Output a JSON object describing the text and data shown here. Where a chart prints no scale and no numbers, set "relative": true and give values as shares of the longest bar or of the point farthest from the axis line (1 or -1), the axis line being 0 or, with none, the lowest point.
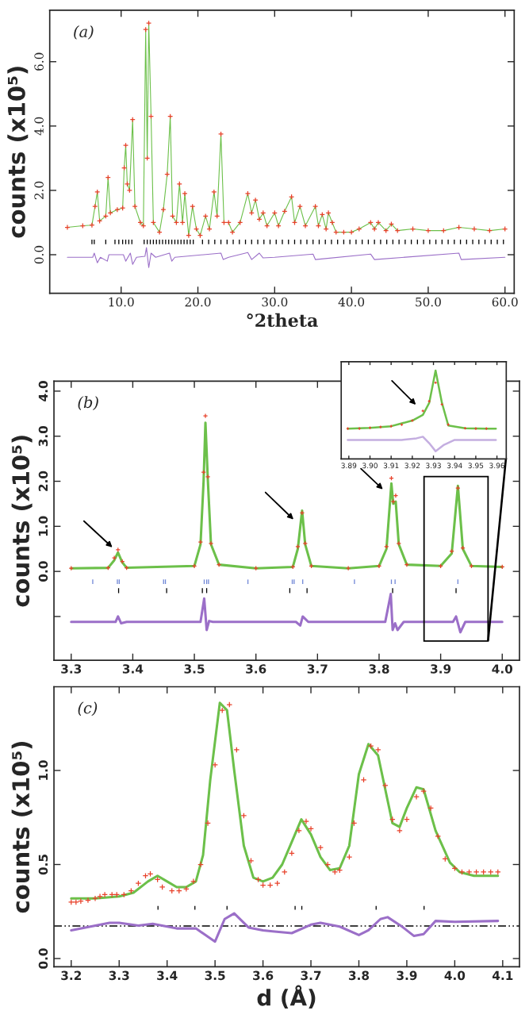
{
  "chart_data": [
    {
      "type": "line",
      "annotations": [
        "(a)"
      ],
      "xlabel": "°2theta",
      "ylabel": "counts (x10⁵)",
      "xlim": [
        0.7,
        61.2
      ],
      "ylim": [
        -1.2,
        7.6
      ],
      "xticks": [
        {
          "value": 10,
          "label": "10.0"
        },
        {
          "value": 20,
          "label": "20.0"
        },
        {
          "value": 30,
          "label": "30.0"
        },
        {
          "value": 40,
          "label": "40.0"
        },
        {
          "value": 50,
          "label": "50.0"
        },
        {
          "value": 60,
          "label": "60.0"
        }
      ],
      "yticks": [
        {
          "value": 0,
          "label": "0.0"
        },
        {
          "value": 2,
          "label": "2.0"
        },
        {
          "value": 4,
          "label": "4.0"
        },
        {
          "value": 6,
          "label": "6.0"
        }
      ],
      "series": [
        {
          "color": "#6cc04a",
          "x": [
            3.0,
            5.0,
            6.2,
            6.6,
            6.9,
            7.2,
            8.0,
            8.3,
            8.6,
            9.5,
            10.2,
            10.4,
            10.6,
            10.8,
            11.1,
            11.5,
            11.8,
            12.5,
            12.9,
            13.2,
            13.4,
            13.6,
            13.9,
            14.2,
            15.0,
            15.5,
            16.0,
            16.4,
            16.7,
            17.2,
            17.6,
            18.0,
            18.3,
            18.8,
            19.3,
            19.8,
            20.3,
            21.0,
            21.5,
            22.1,
            22.5,
            23.0,
            23.4,
            24.0,
            24.5,
            25.5,
            26.5,
            27.0,
            27.5,
            28.0,
            28.5,
            29.0,
            30.0,
            30.5,
            31.3,
            32.2,
            32.6,
            33.3,
            34.0,
            35.3,
            35.7,
            36.2,
            36.7,
            37.0,
            37.5,
            38.0,
            39.0,
            40.0,
            41.0,
            42.5,
            43.0,
            43.5,
            44.5,
            45.2,
            46.0,
            48.0,
            50.0,
            52.0,
            54.0,
            56.0,
            58.0,
            60.0
          ],
          "values": [
            0.85,
            0.9,
            0.92,
            1.5,
            1.95,
            1.05,
            1.2,
            2.4,
            1.3,
            1.4,
            1.45,
            2.7,
            3.4,
            2.2,
            2.0,
            4.2,
            1.5,
            1.0,
            0.9,
            7.0,
            3.0,
            7.2,
            4.3,
            1.0,
            0.7,
            1.4,
            2.5,
            4.3,
            1.2,
            1.0,
            2.2,
            1.0,
            1.9,
            0.6,
            1.5,
            0.8,
            0.6,
            1.2,
            0.8,
            1.95,
            1.2,
            3.75,
            1.0,
            1.0,
            0.7,
            1.0,
            1.9,
            1.3,
            1.7,
            1.1,
            1.3,
            0.9,
            1.3,
            0.9,
            1.35,
            1.8,
            1.0,
            1.5,
            0.9,
            1.5,
            0.9,
            1.25,
            0.8,
            1.3,
            1.0,
            0.7,
            0.7,
            0.7,
            0.8,
            1.0,
            0.8,
            1.0,
            0.75,
            0.95,
            0.75,
            0.8,
            0.75,
            0.75,
            0.85,
            0.8,
            0.75,
            0.8
          ]
        },
        {
          "type": "scatter",
          "marker": "cross",
          "color": "#e8412a",
          "x": [
            3.0,
            5.0,
            6.2,
            6.6,
            6.9,
            7.2,
            8.0,
            8.3,
            8.6,
            9.5,
            10.2,
            10.4,
            10.6,
            10.8,
            11.1,
            11.5,
            11.8,
            12.5,
            12.9,
            13.2,
            13.4,
            13.6,
            13.9,
            14.2,
            15.0,
            15.5,
            16.0,
            16.4,
            16.7,
            17.2,
            17.6,
            18.0,
            18.3,
            18.8,
            19.3,
            19.8,
            20.3,
            21.0,
            21.5,
            22.1,
            22.5,
            23.0,
            23.4,
            24.0,
            24.5,
            25.5,
            26.5,
            27.0,
            27.5,
            28.0,
            28.5,
            29.0,
            30.0,
            30.5,
            31.3,
            32.2,
            32.6,
            33.3,
            34.0,
            35.3,
            35.7,
            36.2,
            36.7,
            37.0,
            37.5,
            38.0,
            39.0,
            40.0,
            41.0,
            42.5,
            43.0,
            43.5,
            44.5,
            45.2,
            46.0,
            48.0,
            50.0,
            52.0,
            54.0,
            56.0,
            58.0,
            60.0
          ],
          "values": [
            0.85,
            0.9,
            0.92,
            1.5,
            1.95,
            1.05,
            1.2,
            2.4,
            1.3,
            1.4,
            1.45,
            2.7,
            3.4,
            2.2,
            2.0,
            4.2,
            1.5,
            1.0,
            0.9,
            7.0,
            3.0,
            7.2,
            4.3,
            1.0,
            0.7,
            1.4,
            2.5,
            4.3,
            1.2,
            1.0,
            2.2,
            1.0,
            1.9,
            0.6,
            1.5,
            0.8,
            0.6,
            1.2,
            0.8,
            1.95,
            1.2,
            3.75,
            1.0,
            1.0,
            0.7,
            1.0,
            1.9,
            1.3,
            1.7,
            1.1,
            1.3,
            0.9,
            1.3,
            0.9,
            1.35,
            1.8,
            1.0,
            1.5,
            0.9,
            1.5,
            0.9,
            1.25,
            0.8,
            1.3,
            1.0,
            0.7,
            0.7,
            0.7,
            0.8,
            1.0,
            0.8,
            1.0,
            0.75,
            0.95,
            0.75,
            0.8,
            0.75,
            0.75,
            0.85,
            0.8,
            0.75,
            0.8
          ]
        },
        {
          "color": "#9b6fc8",
          "x": [
            3.0,
            6.3,
            6.5,
            6.9,
            7.3,
            8.2,
            8.4,
            10.3,
            10.6,
            11.2,
            11.5,
            12.0,
            13.1,
            13.3,
            13.6,
            13.9,
            14.5,
            16.3,
            16.6,
            17.0,
            23.0,
            23.3,
            24.0,
            26.5,
            27.0,
            28.0,
            28.5,
            30.0,
            35.0,
            35.3,
            42.5,
            43.0,
            54.0,
            54.3,
            60.0
          ],
          "values": [
            -0.08,
            -0.08,
            0.05,
            -0.25,
            -0.08,
            -0.2,
            0.0,
            0.0,
            -0.2,
            0.05,
            -0.3,
            -0.08,
            -0.05,
            0.22,
            -0.4,
            0.05,
            -0.08,
            0.05,
            -0.2,
            -0.08,
            0.05,
            -0.15,
            -0.08,
            0.07,
            -0.15,
            0.05,
            -0.1,
            -0.08,
            0.02,
            -0.15,
            0.02,
            -0.15,
            0.05,
            -0.15,
            -0.08
          ]
        },
        {
          "type": "bar",
          "color": "#000000",
          "x": [
            6.2,
            6.5,
            8.0,
            9.2,
            9.7,
            10.2,
            10.6,
            11.0,
            11.4,
            13.0,
            13.4,
            13.8,
            14.2,
            14.6,
            15.0,
            15.4,
            15.8,
            16.2,
            16.6,
            17.0,
            17.4,
            17.8,
            18.2,
            18.6,
            19.0,
            19.4,
            20.6,
            21.4,
            22.2,
            23.0,
            23.8,
            24.6,
            25.4,
            26.2,
            27.0,
            27.8,
            28.6,
            29.4,
            30.2,
            31.0,
            31.8,
            32.6,
            33.4,
            34.2,
            35.0,
            35.8,
            36.6,
            37.4,
            38.2,
            39.0,
            39.8,
            40.6,
            41.4,
            42.2,
            43.0,
            43.8,
            44.6,
            45.4,
            46.2,
            47.0,
            47.8,
            48.6,
            49.4,
            50.2,
            51.0,
            51.8,
            52.6,
            53.4,
            54.2,
            55.0,
            55.8,
            56.6,
            57.4,
            58.2,
            59.0,
            59.8
          ],
          "base": [
            0.33,
            0.33,
            0.33,
            0.33,
            0.33,
            0.33,
            0.33,
            0.33,
            0.33,
            0.33,
            0.33,
            0.33,
            0.33,
            0.33,
            0.33,
            0.33,
            0.33,
            0.33,
            0.33,
            0.33,
            0.33,
            0.33,
            0.33,
            0.33,
            0.33,
            0.33,
            0.33,
            0.33,
            0.33,
            0.33,
            0.33,
            0.33,
            0.33,
            0.33,
            0.33,
            0.33,
            0.33,
            0.33,
            0.33,
            0.33,
            0.33,
            0.33,
            0.33,
            0.33,
            0.33,
            0.33,
            0.33,
            0.33,
            0.33,
            0.33,
            0.33,
            0.33,
            0.33,
            0.33,
            0.33,
            0.33,
            0.33,
            0.33,
            0.33,
            0.33,
            0.33,
            0.33,
            0.33,
            0.33,
            0.33,
            0.33,
            0.33,
            0.33,
            0.33,
            0.33,
            0.33,
            0.33,
            0.33,
            0.33,
            0.33,
            0.33
          ],
          "values": [
            0.14,
            0.14,
            0.14,
            0.14,
            0.14,
            0.14,
            0.14,
            0.14,
            0.14,
            0.14,
            0.14,
            0.14,
            0.14,
            0.14,
            0.14,
            0.14,
            0.14,
            0.14,
            0.14,
            0.14,
            0.14,
            0.14,
            0.14,
            0.14,
            0.14,
            0.14,
            0.14,
            0.14,
            0.14,
            0.14,
            0.14,
            0.14,
            0.14,
            0.14,
            0.14,
            0.14,
            0.14,
            0.14,
            0.14,
            0.14,
            0.14,
            0.14,
            0.14,
            0.14,
            0.14,
            0.14,
            0.14,
            0.14,
            0.14,
            0.14,
            0.14,
            0.14,
            0.14,
            0.14,
            0.14,
            0.14,
            0.14,
            0.14,
            0.14,
            0.14,
            0.14,
            0.14,
            0.14,
            0.14,
            0.14,
            0.14,
            0.14,
            0.14,
            0.14,
            0.14,
            0.14,
            0.14,
            0.14,
            0.14,
            0.14,
            0.14
          ]
        }
      ]
    },
    {
      "type": "line",
      "annotations": [
        "(b)"
      ],
      "ylabel": "counts (x10⁵)",
      "xlim": [
        3.272,
        4.028
      ],
      "ylim": [
        -1.97,
        4.22
      ],
      "xticks": [
        3.3,
        3.4,
        3.5,
        3.6,
        3.7,
        3.8,
        3.9,
        {
          "value": 4.0,
          "label": "4.0"
        }
      ],
      "yticks": [
        {
          "value": -1.0,
          "label": null
        },
        {
          "value": 0,
          "label": "0.0"
        },
        {
          "value": 1,
          "label": "1.0"
        },
        {
          "value": 2,
          "label": "2.0"
        },
        {
          "value": 3,
          "label": "3.0"
        },
        {
          "value": 4,
          "label": "4.0"
        }
      ],
      "series": [
        {
          "color": "#6cc04a",
          "x": [
            3.3,
            3.36,
            3.37,
            3.376,
            3.383,
            3.39,
            3.5,
            3.51,
            3.515,
            3.518,
            3.522,
            3.527,
            3.54,
            3.6,
            3.66,
            3.668,
            3.675,
            3.68,
            3.69,
            3.75,
            3.8,
            3.812,
            3.82,
            3.823,
            3.827,
            3.832,
            3.845,
            3.9,
            3.918,
            3.928,
            3.936,
            3.95,
            4.0
          ],
          "values": [
            0.07,
            0.08,
            0.25,
            0.42,
            0.2,
            0.08,
            0.12,
            0.6,
            2.0,
            3.3,
            2.0,
            0.6,
            0.15,
            0.07,
            0.1,
            0.5,
            1.35,
            0.6,
            0.12,
            0.07,
            0.12,
            0.5,
            1.95,
            1.5,
            1.55,
            0.6,
            0.15,
            0.12,
            0.4,
            1.9,
            0.5,
            0.12,
            0.1
          ]
        },
        {
          "type": "scatter",
          "marker": "cross",
          "color": "#e8412a",
          "x": [
            3.3,
            3.36,
            3.37,
            3.376,
            3.383,
            3.39,
            3.5,
            3.51,
            3.515,
            3.518,
            3.522,
            3.527,
            3.54,
            3.6,
            3.66,
            3.668,
            3.675,
            3.68,
            3.69,
            3.75,
            3.8,
            3.812,
            3.82,
            3.823,
            3.827,
            3.832,
            3.845,
            3.9,
            3.918,
            3.928,
            3.936,
            3.95,
            4.0
          ],
          "values": [
            0.07,
            0.08,
            0.3,
            0.48,
            0.22,
            0.08,
            0.12,
            0.65,
            2.2,
            3.45,
            2.1,
            0.62,
            0.15,
            0.07,
            0.1,
            0.55,
            1.3,
            0.62,
            0.12,
            0.07,
            0.12,
            0.55,
            2.07,
            1.55,
            1.68,
            0.62,
            0.15,
            0.12,
            0.45,
            1.85,
            0.52,
            0.12,
            0.1
          ]
        },
        {
          "type": "bar",
          "color": "#6f86d6",
          "x": [
            3.335,
            3.375,
            3.378,
            3.45,
            3.453,
            3.516,
            3.52,
            3.523,
            3.587,
            3.659,
            3.662,
            3.676,
            3.76,
            3.82,
            3.826,
            3.928
          ],
          "base": [
            -0.28,
            -0.28,
            -0.28,
            -0.28,
            -0.28,
            -0.28,
            -0.28,
            -0.28,
            -0.28,
            -0.28,
            -0.28,
            -0.28,
            -0.28,
            -0.28,
            -0.28,
            -0.28
          ],
          "values": [
            0.1,
            0.1,
            0.1,
            0.1,
            0.1,
            0.1,
            0.1,
            0.1,
            0.1,
            0.1,
            0.1,
            0.1,
            0.1,
            0.1,
            0.1,
            0.1
          ]
        },
        {
          "type": "bar",
          "color": "#000000",
          "x": [
            3.377,
            3.455,
            3.513,
            3.52,
            3.655,
            3.683,
            3.822,
            3.925
          ],
          "base": [
            -0.48,
            -0.48,
            -0.48,
            -0.48,
            -0.48,
            -0.48,
            -0.48,
            -0.48
          ],
          "values": [
            0.11,
            0.11,
            0.11,
            0.11,
            0.11,
            0.11,
            0.11,
            0.11
          ]
        },
        {
          "color": "#9b6fc8",
          "x": [
            3.3,
            3.372,
            3.376,
            3.381,
            3.39,
            3.51,
            3.516,
            3.52,
            3.524,
            3.53,
            3.665,
            3.672,
            3.676,
            3.685,
            3.81,
            3.819,
            3.822,
            3.826,
            3.83,
            3.84,
            3.92,
            3.925,
            3.932,
            3.94,
            4.0
          ],
          "values": [
            -1.12,
            -1.12,
            -1.0,
            -1.15,
            -1.12,
            -1.12,
            -0.6,
            -1.3,
            -1.1,
            -1.12,
            -1.12,
            -1.2,
            -1.0,
            -1.12,
            -1.12,
            -0.5,
            -1.3,
            -1.15,
            -1.3,
            -1.12,
            -1.12,
            -1.0,
            -1.35,
            -1.12,
            -1.12
          ]
        }
      ]
    },
    {
      "type": "line",
      "relative": true,
      "tick_labels": "x",
      "xlim": [
        3.8864,
        3.9644
      ],
      "xticks": [
        3.89,
        {
          "value": 3.9,
          "label": "3.90"
        },
        3.91,
        3.92,
        3.93,
        3.94,
        3.95,
        3.96
      ],
      "series": [
        {
          "color": "#6cc04a",
          "x": [
            3.8895,
            3.9,
            3.91,
            3.92,
            3.925,
            3.928,
            3.931,
            3.934,
            3.937,
            3.945,
            3.955,
            3.9595
          ],
          "values": [
            0.343,
            0.352,
            0.37,
            0.434,
            0.498,
            0.635,
            1.0,
            0.635,
            0.379,
            0.347,
            0.343,
            0.343
          ]
        },
        {
          "type": "scatter",
          "marker": "cross",
          "color": "#e8412a",
          "x": [
            3.8895,
            3.895,
            3.9,
            3.905,
            3.91,
            3.915,
            3.92,
            3.925,
            3.928,
            3.931,
            3.934,
            3.937,
            3.945,
            3.95,
            3.955
          ],
          "values": [
            0.343,
            0.343,
            0.352,
            0.361,
            0.37,
            0.388,
            0.434,
            0.544,
            0.653,
            0.863,
            0.617,
            0.388,
            0.347,
            0.343,
            0.343
          ]
        },
        {
          "color": "#c4aee0",
          "x": [
            3.8895,
            3.915,
            3.922,
            3.925,
            3.928,
            3.931,
            3.935,
            3.94,
            3.9595
          ],
          "values": [
            0.215,
            0.215,
            0.233,
            0.251,
            0.178,
            0.087,
            0.16,
            0.215,
            0.215
          ]
        }
      ]
    },
    {
      "type": "line",
      "annotations": [
        "(c)"
      ],
      "xlabel": "d (Å)",
      "ylabel": "counts (x10⁵)",
      "xlim": [
        3.164,
        4.135
      ],
      "ylim": [
        -0.044,
        1.445
      ],
      "xticks": [
        3.2,
        3.3,
        3.4,
        3.5,
        3.6,
        3.7,
        3.8,
        3.9,
        {
          "value": 4.0,
          "label": "4.0"
        },
        4.1
      ],
      "yticks": [
        {
          "value": 0,
          "label": "0.0"
        },
        0.5,
        {
          "value": 1,
          "label": "1.0"
        }
      ],
      "ref_lines": [
        {
          "axis": "y",
          "value": 0.173,
          "color": "#000000",
          "line_style": "dashdot"
        }
      ],
      "series": [
        {
          "color": "#6cc04a",
          "x": [
            3.2,
            3.25,
            3.3,
            3.33,
            3.36,
            3.38,
            3.4,
            3.42,
            3.44,
            3.46,
            3.475,
            3.49,
            3.51,
            3.525,
            3.54,
            3.56,
            3.58,
            3.6,
            3.62,
            3.64,
            3.66,
            3.68,
            3.7,
            3.72,
            3.74,
            3.76,
            3.78,
            3.8,
            3.82,
            3.84,
            3.87,
            3.885,
            3.9,
            3.92,
            3.935,
            3.96,
            3.99,
            4.01,
            4.04,
            4.09
          ],
          "values": [
            0.32,
            0.32,
            0.33,
            0.35,
            0.41,
            0.44,
            0.41,
            0.38,
            0.38,
            0.41,
            0.55,
            0.95,
            1.36,
            1.32,
            1.0,
            0.6,
            0.43,
            0.41,
            0.43,
            0.5,
            0.62,
            0.74,
            0.66,
            0.54,
            0.47,
            0.48,
            0.6,
            0.98,
            1.14,
            1.08,
            0.72,
            0.7,
            0.8,
            0.91,
            0.9,
            0.68,
            0.51,
            0.46,
            0.44,
            0.44
          ]
        },
        {
          "type": "scatter",
          "marker": "cross",
          "color": "#e8412a",
          "x": [
            3.2,
            3.21,
            3.22,
            3.235,
            3.25,
            3.26,
            3.27,
            3.285,
            3.295,
            3.31,
            3.325,
            3.34,
            3.355,
            3.365,
            3.38,
            3.39,
            3.41,
            3.425,
            3.44,
            3.455,
            3.47,
            3.485,
            3.5,
            3.515,
            3.53,
            3.545,
            3.56,
            3.575,
            3.59,
            3.6,
            3.615,
            3.63,
            3.645,
            3.66,
            3.675,
            3.69,
            3.7,
            3.72,
            3.735,
            3.75,
            3.76,
            3.78,
            3.79,
            3.81,
            3.825,
            3.84,
            3.855,
            3.87,
            3.885,
            3.9,
            3.92,
            3.935,
            3.95,
            3.965,
            3.98,
            4.0,
            4.015,
            4.03,
            4.045,
            4.06,
            4.075,
            4.09
          ],
          "values": [
            0.3,
            0.3,
            0.305,
            0.31,
            0.32,
            0.33,
            0.34,
            0.34,
            0.34,
            0.34,
            0.36,
            0.4,
            0.44,
            0.45,
            0.42,
            0.38,
            0.36,
            0.36,
            0.37,
            0.41,
            0.5,
            0.72,
            1.03,
            1.32,
            1.35,
            1.11,
            0.76,
            0.52,
            0.42,
            0.39,
            0.39,
            0.4,
            0.46,
            0.56,
            0.68,
            0.73,
            0.69,
            0.59,
            0.5,
            0.46,
            0.47,
            0.54,
            0.72,
            0.95,
            1.13,
            1.11,
            0.92,
            0.74,
            0.68,
            0.74,
            0.86,
            0.89,
            0.8,
            0.65,
            0.53,
            0.48,
            0.46,
            0.46,
            0.46,
            0.46,
            0.46,
            0.46
          ]
        },
        {
          "type": "bar",
          "color": "#000000",
          "x": [
            3.381,
            3.458,
            3.525,
            3.667,
            3.681,
            3.836,
            3.936
          ],
          "base": [
            0.26,
            0.26,
            0.26,
            0.26,
            0.26,
            0.26,
            0.26
          ],
          "values": [
            0.02,
            0.02,
            0.02,
            0.02,
            0.02,
            0.02,
            0.02
          ]
        },
        {
          "color": "#9b6fc8",
          "x": [
            3.2,
            3.28,
            3.3,
            3.34,
            3.37,
            3.42,
            3.46,
            3.5,
            3.52,
            3.54,
            3.57,
            3.6,
            3.62,
            3.66,
            3.7,
            3.72,
            3.76,
            3.8,
            3.82,
            3.845,
            3.86,
            3.89,
            3.915,
            3.935,
            3.96,
            4.0,
            4.09
          ],
          "values": [
            0.15,
            0.19,
            0.19,
            0.175,
            0.185,
            0.16,
            0.16,
            0.09,
            0.21,
            0.24,
            0.165,
            0.15,
            0.145,
            0.135,
            0.18,
            0.19,
            0.17,
            0.125,
            0.15,
            0.21,
            0.22,
            0.17,
            0.12,
            0.13,
            0.2,
            0.195,
            0.2
          ]
        }
      ]
    }
  ]
}
